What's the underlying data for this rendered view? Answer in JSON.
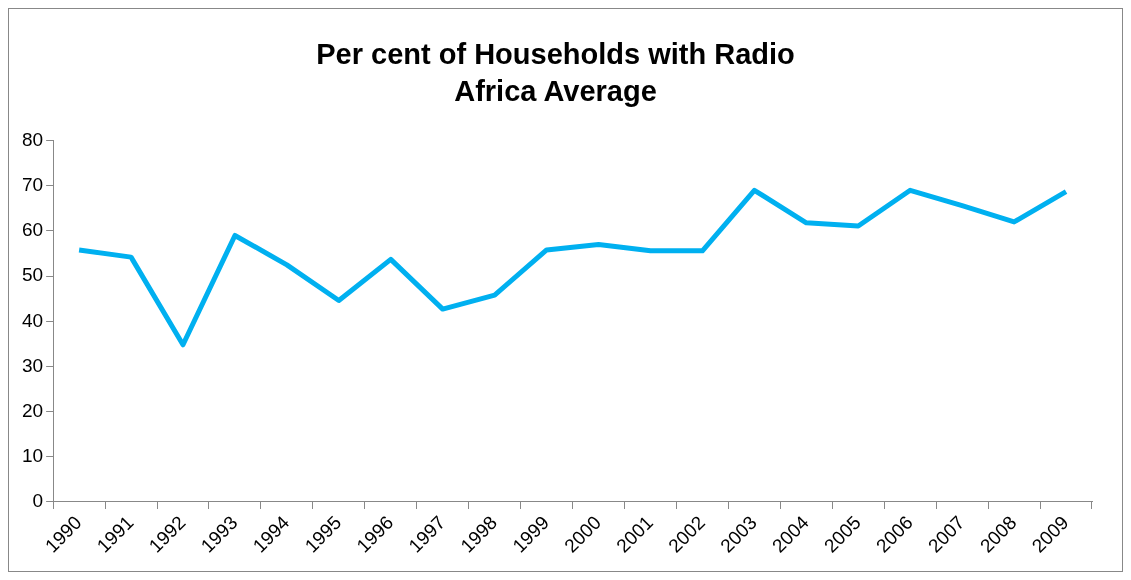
{
  "chart_data": {
    "type": "line",
    "title": "Per cent of Households with Radio",
    "subtitle": "Africa Average",
    "categories": [
      "1990",
      "1991",
      "1992",
      "1993",
      "1994",
      "1995",
      "1996",
      "1997",
      "1998",
      "1999",
      "2000",
      "2001",
      "2002",
      "2003",
      "2004",
      "2005",
      "2006",
      "2007",
      "2008",
      "2009"
    ],
    "series": [
      {
        "color": "#00b0f0",
        "values": [
          55.8,
          54.2,
          34.8,
          59,
          52.5,
          44.6,
          53.7,
          42.7,
          45.8,
          55.8,
          57,
          55.6,
          55.6,
          69,
          61.8,
          61.1,
          69,
          65.6,
          62,
          68.7
        ]
      }
    ],
    "ylim": [
      0,
      80
    ],
    "yticks": [
      0,
      10,
      20,
      30,
      40,
      50,
      60,
      70,
      80
    ],
    "grid": false,
    "legend": false,
    "marker": "none",
    "line_style": "solid"
  }
}
